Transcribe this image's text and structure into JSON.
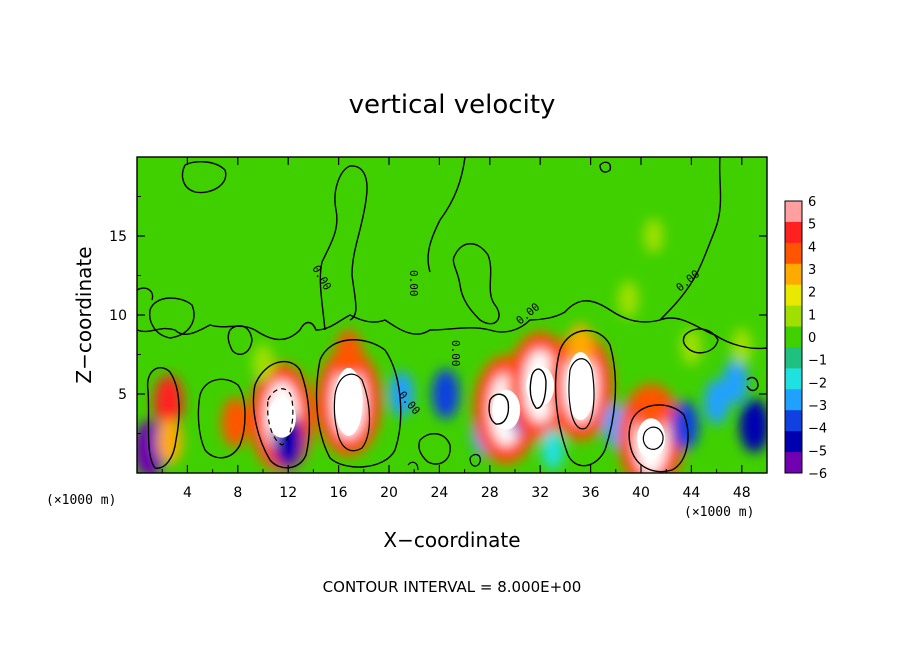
{
  "chart_data": {
    "type": "heatmap",
    "title": "vertical velocity",
    "xlabel": "X−coordinate",
    "ylabel": "Z−coordinate",
    "x_unit_note": "(×1000 m)",
    "y_unit_note": "(×1000 m)",
    "xlim": [
      0,
      50
    ],
    "ylim": [
      0,
      20
    ],
    "x_ticks": [
      "4",
      "8",
      "12",
      "16",
      "20",
      "24",
      "28",
      "32",
      "36",
      "40",
      "44",
      "48"
    ],
    "x_tick_values": [
      4,
      8,
      12,
      16,
      20,
      24,
      28,
      32,
      36,
      40,
      44,
      48
    ],
    "y_ticks": [
      "5",
      "10",
      "15"
    ],
    "y_tick_values": [
      5,
      10,
      15
    ],
    "colorbar": {
      "labels": [
        "6",
        "5",
        "4",
        "3",
        "2",
        "1",
        "0",
        "−1",
        "−2",
        "−3",
        "−4",
        "−5",
        "−6"
      ],
      "values": [
        6,
        5,
        4,
        3,
        2,
        1,
        0,
        -1,
        -2,
        -3,
        -4,
        -5,
        -6
      ],
      "colors": [
        "#ff9f9f",
        "#ff2020",
        "#ff5500",
        "#ffaa00",
        "#e8e800",
        "#a0e000",
        "#40d000",
        "#20c080",
        "#20e0e0",
        "#20a0ff",
        "#1040e0",
        "#0000b0",
        "#7000b0"
      ]
    },
    "contour_labels": [
      "0.00",
      "0.00",
      "0.00",
      "0.00",
      "0.00",
      "0.00"
    ],
    "caption": "CONTOUR INTERVAL = 8.000E+00",
    "features": [
      {
        "x": 1.0,
        "z": 1.5,
        "value": -6
      },
      {
        "x": 2.5,
        "z": 4.5,
        "value": 5
      },
      {
        "x": 2.6,
        "z": 2.0,
        "value": 3
      },
      {
        "x": 7.8,
        "z": 3.2,
        "value": 4
      },
      {
        "x": 10.5,
        "z": 5.0,
        "value": -5
      },
      {
        "x": 11.5,
        "z": 3.5,
        "value": 8
      },
      {
        "x": 12.0,
        "z": 2.0,
        "value": -5
      },
      {
        "x": 16.8,
        "z": 4.5,
        "value": 12
      },
      {
        "x": 16.8,
        "z": 7.5,
        "value": 4
      },
      {
        "x": 21.0,
        "z": 5.0,
        "value": -3
      },
      {
        "x": 24.5,
        "z": 5.0,
        "value": -4
      },
      {
        "x": 27.5,
        "z": 2.5,
        "value": -3
      },
      {
        "x": 29.3,
        "z": 4.0,
        "value": 8
      },
      {
        "x": 30.5,
        "z": 4.0,
        "value": -4
      },
      {
        "x": 32.0,
        "z": 5.5,
        "value": 8
      },
      {
        "x": 33.0,
        "z": 1.5,
        "value": -2
      },
      {
        "x": 35.2,
        "z": 5.5,
        "value": 12
      },
      {
        "x": 35.2,
        "z": 8.0,
        "value": 3
      },
      {
        "x": 38.0,
        "z": 3.0,
        "value": -3
      },
      {
        "x": 40.8,
        "z": 2.2,
        "value": 10
      },
      {
        "x": 40.8,
        "z": 3.8,
        "value": 4
      },
      {
        "x": 43.5,
        "z": 3.0,
        "value": -4
      },
      {
        "x": 46.0,
        "z": 4.5,
        "value": -3
      },
      {
        "x": 49.0,
        "z": 3.0,
        "value": -5
      },
      {
        "x": 47.5,
        "z": 5.8,
        "value": -3
      },
      {
        "x": 44.0,
        "z": 8.0,
        "value": 1
      },
      {
        "x": 39.0,
        "z": 11.0,
        "value": 1
      },
      {
        "x": 10.0,
        "z": 7.0,
        "value": 1
      },
      {
        "x": 48.0,
        "z": 8.0,
        "value": 1
      },
      {
        "x": 41.0,
        "z": 15.0,
        "value": 0.6
      }
    ]
  }
}
